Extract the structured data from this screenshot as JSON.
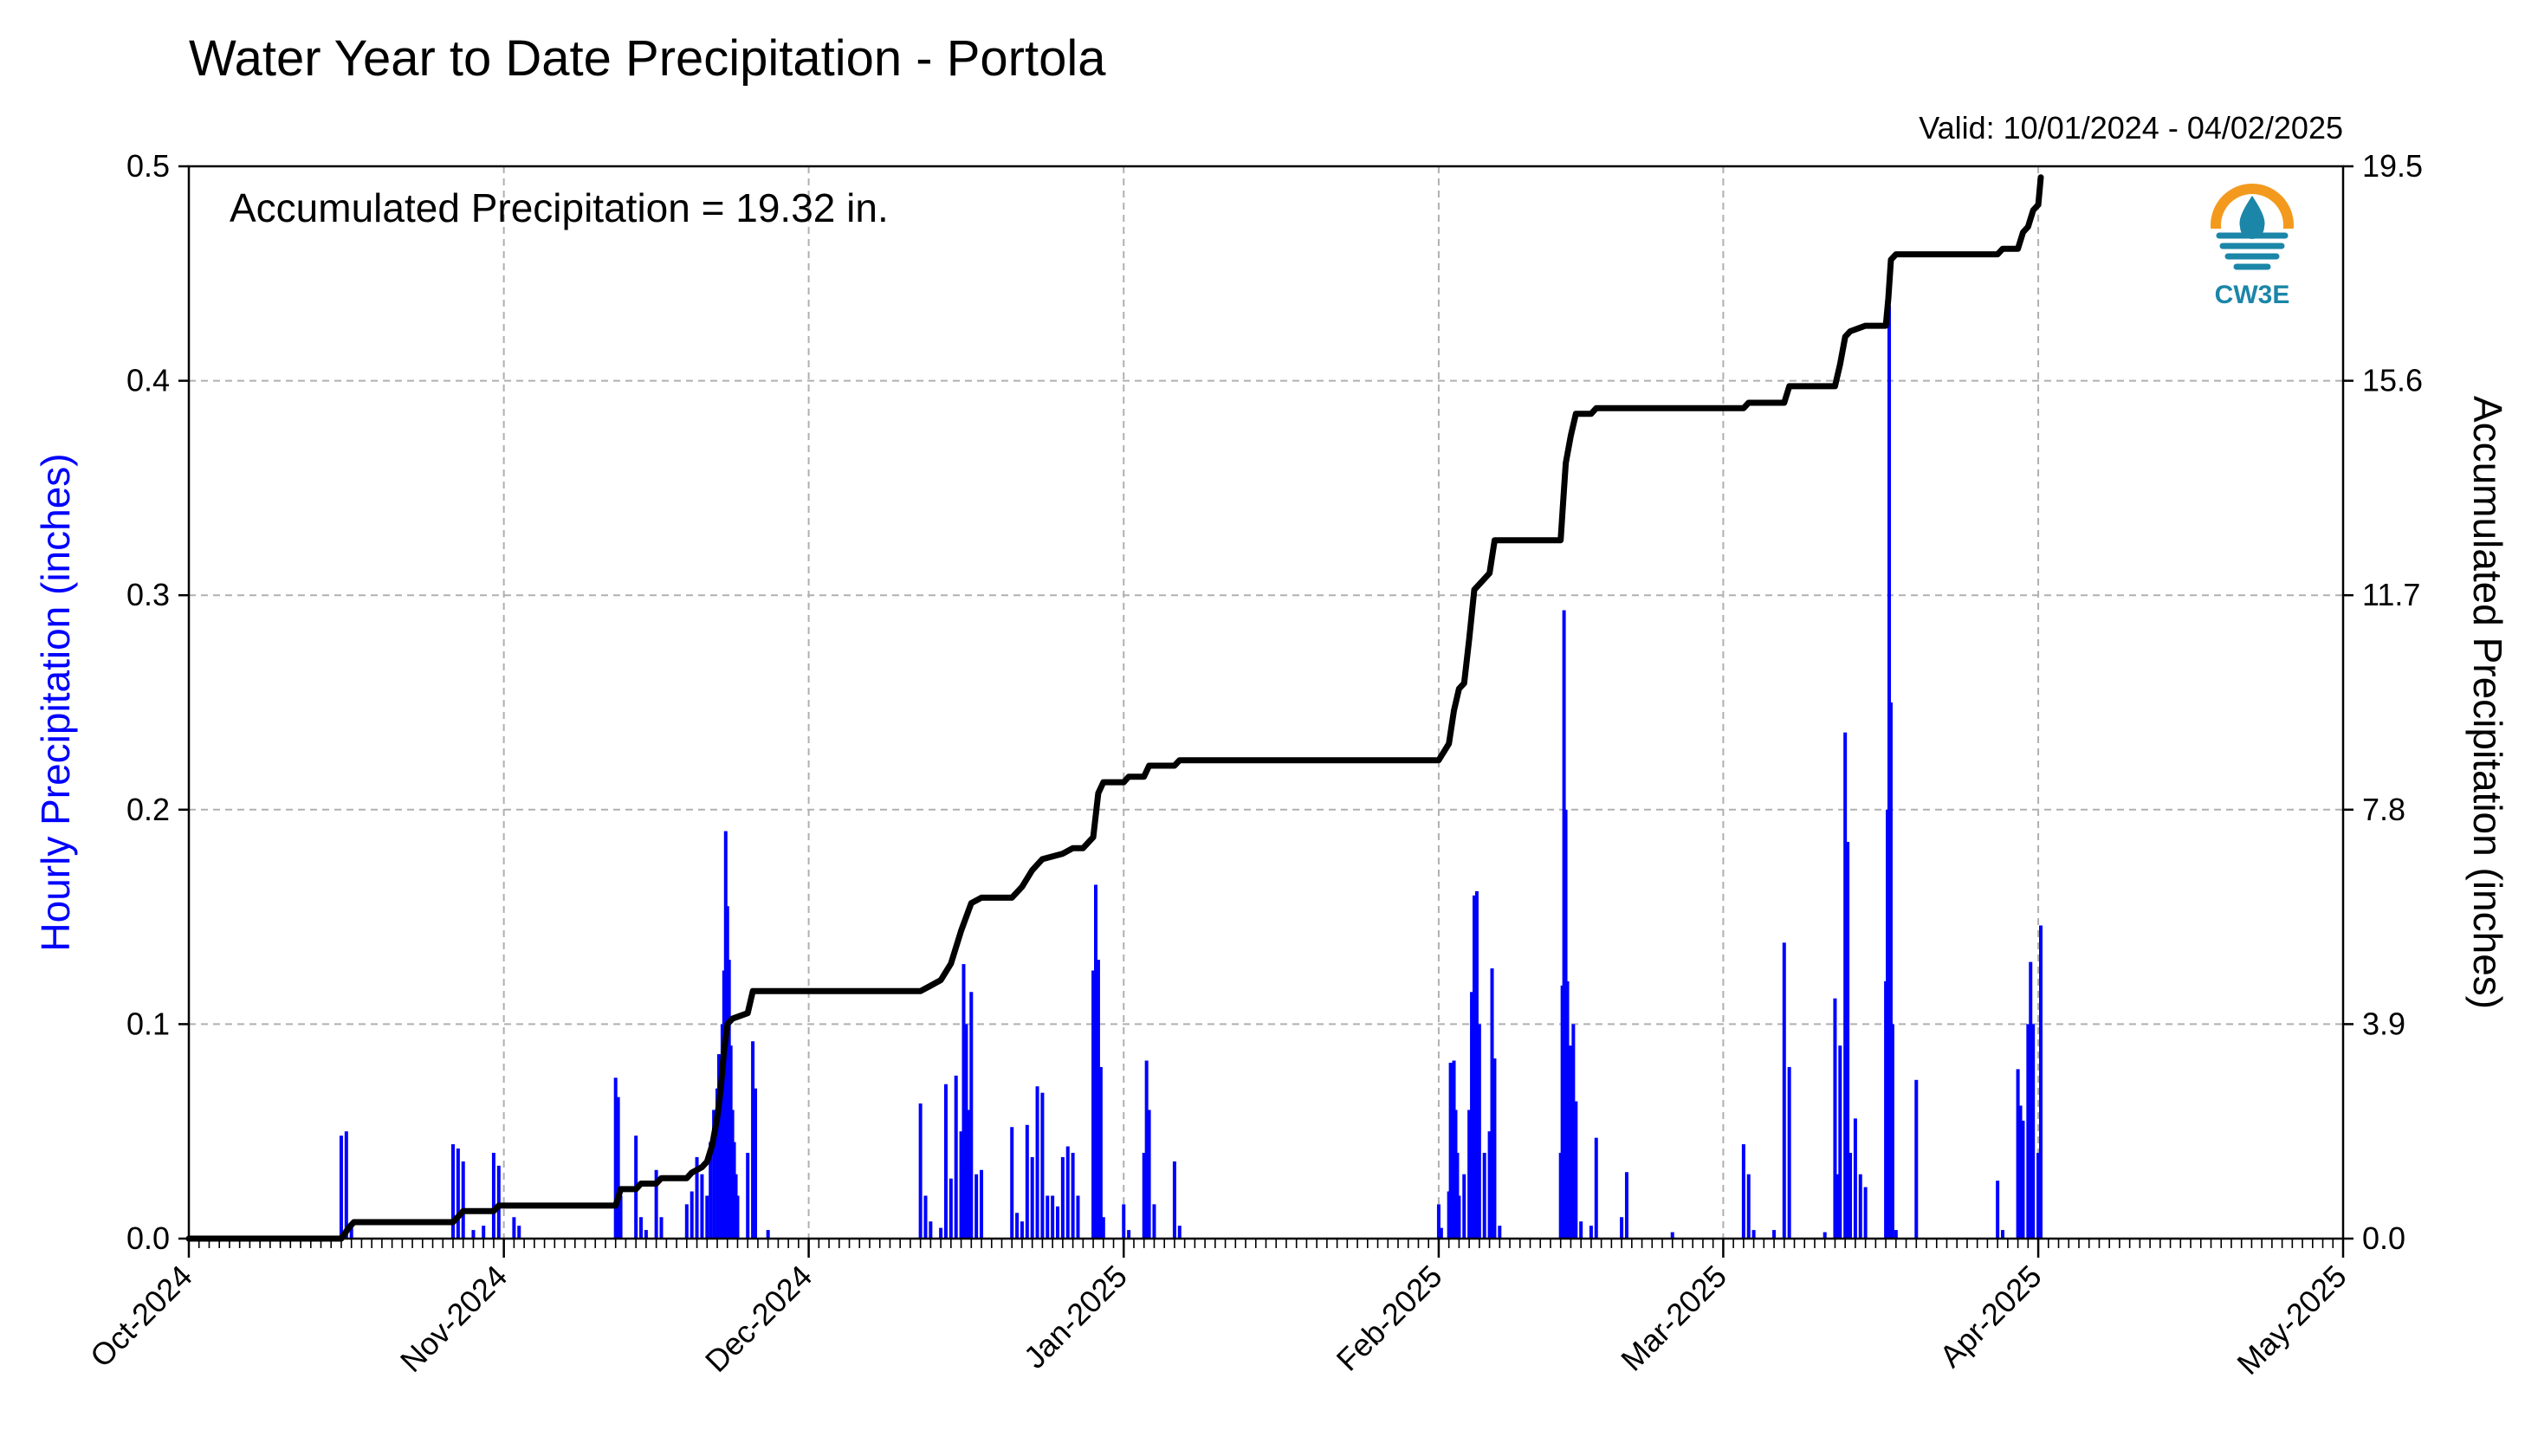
{
  "title": "Water Year to Date Precipitation - Portola",
  "valid_text": "Valid: 10/01/2024 - 04/02/2025",
  "annotation": "Accumulated Precipitation = 19.32 in.",
  "logo_text": "CW3E",
  "colors": {
    "hourly": "#0000ff",
    "accumulated": "#000000",
    "logo_orange": "#f39a1e",
    "logo_blue": "#1b86a8"
  },
  "chart_data": {
    "type": "bar",
    "x_axis": {
      "start": "2024-10-01",
      "end": "2025-05-01",
      "tick_labels": [
        "Oct-2024",
        "Nov-2024",
        "Dec-2024",
        "Jan-2025",
        "Feb-2025",
        "Mar-2025",
        "Apr-2025",
        "May-2025"
      ],
      "tick_dates": [
        "2024-10-01",
        "2024-11-01",
        "2024-12-01",
        "2025-01-01",
        "2025-02-01",
        "2025-03-01",
        "2025-04-01",
        "2025-05-01"
      ],
      "minor_ticks": "daily"
    },
    "y_left": {
      "label": "Hourly Precipitation (inches)",
      "ylim": [
        0,
        0.5
      ],
      "ticks": [
        "0.0",
        "0.1",
        "0.2",
        "0.3",
        "0.4",
        "0.5"
      ]
    },
    "y_right": {
      "label": "Accumulated Precipitation (inches)",
      "ylim": [
        0,
        19.5
      ],
      "ticks": [
        "0.0",
        "3.9",
        "7.8",
        "11.7",
        "15.6",
        "19.5"
      ]
    },
    "grid": true,
    "series": [
      {
        "type": "bar",
        "axis": "left",
        "color": "#0000ff",
        "data": [
          [
            "2024-10-16",
            0.048
          ],
          [
            "2024-10-16T12",
            0.05
          ],
          [
            "2024-10-17",
            0.006
          ],
          [
            "2024-10-27",
            0.044
          ],
          [
            "2024-10-27T12",
            0.042
          ],
          [
            "2024-10-28",
            0.036
          ],
          [
            "2024-10-29",
            0.004
          ],
          [
            "2024-10-30",
            0.006
          ],
          [
            "2024-10-31",
            0.04
          ],
          [
            "2024-10-31T12",
            0.034
          ],
          [
            "2024-11-02",
            0.01
          ],
          [
            "2024-11-02T12",
            0.006
          ],
          [
            "2024-11-12",
            0.075
          ],
          [
            "2024-11-12T06",
            0.066
          ],
          [
            "2024-11-12T12",
            0.02
          ],
          [
            "2024-11-14",
            0.048
          ],
          [
            "2024-11-14T12",
            0.01
          ],
          [
            "2024-11-15",
            0.004
          ],
          [
            "2024-11-16",
            0.032
          ],
          [
            "2024-11-16T12",
            0.01
          ],
          [
            "2024-11-19",
            0.016
          ],
          [
            "2024-11-19T12",
            0.022
          ],
          [
            "2024-11-20",
            0.038
          ],
          [
            "2024-11-20T12",
            0.03
          ],
          [
            "2024-11-21",
            0.02
          ],
          [
            "2024-11-21T08",
            0.045
          ],
          [
            "2024-11-21T16",
            0.06
          ],
          [
            "2024-11-22",
            0.07
          ],
          [
            "2024-11-22T04",
            0.086
          ],
          [
            "2024-11-22T08",
            0.068
          ],
          [
            "2024-11-22T12",
            0.1
          ],
          [
            "2024-11-22T16",
            0.125
          ],
          [
            "2024-11-22T20",
            0.19
          ],
          [
            "2024-11-23",
            0.155
          ],
          [
            "2024-11-23T04",
            0.13
          ],
          [
            "2024-11-23T08",
            0.09
          ],
          [
            "2024-11-23T12",
            0.06
          ],
          [
            "2024-11-23T16",
            0.045
          ],
          [
            "2024-11-23T20",
            0.03
          ],
          [
            "2024-11-24",
            0.02
          ],
          [
            "2024-11-25",
            0.04
          ],
          [
            "2024-11-25T12",
            0.092
          ],
          [
            "2024-11-25T18",
            0.07
          ],
          [
            "2024-11-27",
            0.004
          ],
          [
            "2024-12-12",
            0.063
          ],
          [
            "2024-12-12T12",
            0.02
          ],
          [
            "2024-12-13",
            0.008
          ],
          [
            "2024-12-14",
            0.005
          ],
          [
            "2024-12-14T12",
            0.072
          ],
          [
            "2024-12-15",
            0.028
          ],
          [
            "2024-12-15T12",
            0.076
          ],
          [
            "2024-12-16",
            0.05
          ],
          [
            "2024-12-16T06",
            0.128
          ],
          [
            "2024-12-16T12",
            0.1
          ],
          [
            "2024-12-16T18",
            0.06
          ],
          [
            "2024-12-17",
            0.115
          ],
          [
            "2024-12-17T12",
            0.03
          ],
          [
            "2024-12-18",
            0.032
          ],
          [
            "2024-12-21",
            0.052
          ],
          [
            "2024-12-21T12",
            0.012
          ],
          [
            "2024-12-22",
            0.008
          ],
          [
            "2024-12-22T12",
            0.053
          ],
          [
            "2024-12-23",
            0.038
          ],
          [
            "2024-12-23T12",
            0.071
          ],
          [
            "2024-12-24",
            0.068
          ],
          [
            "2024-12-24T12",
            0.02
          ],
          [
            "2024-12-25",
            0.02
          ],
          [
            "2024-12-25T12",
            0.015
          ],
          [
            "2024-12-26",
            0.038
          ],
          [
            "2024-12-26T12",
            0.043
          ],
          [
            "2024-12-27",
            0.04
          ],
          [
            "2024-12-27T12",
            0.02
          ],
          [
            "2024-12-29",
            0.125
          ],
          [
            "2024-12-29T06",
            0.165
          ],
          [
            "2024-12-29T12",
            0.13
          ],
          [
            "2024-12-29T18",
            0.08
          ],
          [
            "2024-12-30",
            0.01
          ],
          [
            "2025-01-01",
            0.016
          ],
          [
            "2025-01-01T12",
            0.004
          ],
          [
            "2025-01-03",
            0.04
          ],
          [
            "2025-01-03T06",
            0.083
          ],
          [
            "2025-01-03T12",
            0.06
          ],
          [
            "2025-01-04",
            0.016
          ],
          [
            "2025-01-06",
            0.036
          ],
          [
            "2025-01-06T12",
            0.006
          ],
          [
            "2025-02-01",
            0.016
          ],
          [
            "2025-02-01T06",
            0.005
          ],
          [
            "2025-02-02",
            0.022
          ],
          [
            "2025-02-02T04",
            0.082
          ],
          [
            "2025-02-02T08",
            0.064
          ],
          [
            "2025-02-02T12",
            0.083
          ],
          [
            "2025-02-02T16",
            0.06
          ],
          [
            "2025-02-02T20",
            0.04
          ],
          [
            "2025-02-03",
            0.02
          ],
          [
            "2025-02-03T12",
            0.03
          ],
          [
            "2025-02-04",
            0.06
          ],
          [
            "2025-02-04T06",
            0.115
          ],
          [
            "2025-02-04T12",
            0.16
          ],
          [
            "2025-02-04T18",
            0.162
          ],
          [
            "2025-02-05",
            0.1
          ],
          [
            "2025-02-05T12",
            0.04
          ],
          [
            "2025-02-06",
            0.05
          ],
          [
            "2025-02-06T06",
            0.126
          ],
          [
            "2025-02-06T12",
            0.084
          ],
          [
            "2025-02-07",
            0.006
          ],
          [
            "2025-02-13",
            0.04
          ],
          [
            "2025-02-13T04",
            0.118
          ],
          [
            "2025-02-13T08",
            0.293
          ],
          [
            "2025-02-13T12",
            0.2
          ],
          [
            "2025-02-13T16",
            0.12
          ],
          [
            "2025-02-14",
            0.09
          ],
          [
            "2025-02-14T06",
            0.1
          ],
          [
            "2025-02-14T12",
            0.064
          ],
          [
            "2025-02-15",
            0.008
          ],
          [
            "2025-02-16",
            0.006
          ],
          [
            "2025-02-16T12",
            0.047
          ],
          [
            "2025-02-19",
            0.01
          ],
          [
            "2025-02-19T12",
            0.031
          ],
          [
            "2025-02-24",
            0.003
          ],
          [
            "2025-03-03",
            0.044
          ],
          [
            "2025-03-03T12",
            0.03
          ],
          [
            "2025-03-04",
            0.004
          ],
          [
            "2025-03-06",
            0.004
          ],
          [
            "2025-03-07",
            0.138
          ],
          [
            "2025-03-07T12",
            0.08
          ],
          [
            "2025-03-11",
            0.003
          ],
          [
            "2025-03-12",
            0.112
          ],
          [
            "2025-03-12T06",
            0.03
          ],
          [
            "2025-03-12T12",
            0.09
          ],
          [
            "2025-03-13",
            0.236
          ],
          [
            "2025-03-13T06",
            0.185
          ],
          [
            "2025-03-13T12",
            0.04
          ],
          [
            "2025-03-14",
            0.056
          ],
          [
            "2025-03-14T12",
            0.03
          ],
          [
            "2025-03-15",
            0.024
          ],
          [
            "2025-03-17",
            0.12
          ],
          [
            "2025-03-17T04",
            0.2
          ],
          [
            "2025-03-17T08",
            0.435
          ],
          [
            "2025-03-17T12",
            0.25
          ],
          [
            "2025-03-17T16",
            0.1
          ],
          [
            "2025-03-18",
            0.004
          ],
          [
            "2025-03-20",
            0.074
          ],
          [
            "2025-03-28",
            0.027
          ],
          [
            "2025-03-28T12",
            0.004
          ],
          [
            "2025-03-30",
            0.079
          ],
          [
            "2025-03-30T06",
            0.062
          ],
          [
            "2025-03-30T12",
            0.055
          ],
          [
            "2025-03-31",
            0.1
          ],
          [
            "2025-03-31T06",
            0.129
          ],
          [
            "2025-03-31T12",
            0.1
          ],
          [
            "2025-04-01",
            0.04
          ],
          [
            "2025-04-01T06",
            0.146
          ]
        ]
      },
      {
        "type": "line",
        "axis": "right",
        "color": "#000000",
        "data": [
          [
            "2024-10-01",
            0.0
          ],
          [
            "2024-10-16",
            0.0
          ],
          [
            "2024-10-16T18",
            0.2
          ],
          [
            "2024-10-17T06",
            0.3
          ],
          [
            "2024-10-27",
            0.3
          ],
          [
            "2024-10-28",
            0.5
          ],
          [
            "2024-10-31",
            0.5
          ],
          [
            "2024-10-31T12",
            0.6
          ],
          [
            "2024-11-12",
            0.6
          ],
          [
            "2024-11-12T12",
            0.9
          ],
          [
            "2024-11-14",
            0.9
          ],
          [
            "2024-11-14T12",
            1.0
          ],
          [
            "2024-11-16",
            1.0
          ],
          [
            "2024-11-16T12",
            1.1
          ],
          [
            "2024-11-19",
            1.1
          ],
          [
            "2024-11-19T12",
            1.2
          ],
          [
            "2024-11-20T12",
            1.3
          ],
          [
            "2024-11-21",
            1.4
          ],
          [
            "2024-11-21T12",
            1.7
          ],
          [
            "2024-11-22",
            2.2
          ],
          [
            "2024-11-22T08",
            2.7
          ],
          [
            "2024-11-22T16",
            3.4
          ],
          [
            "2024-11-23",
            3.9
          ],
          [
            "2024-11-23T12",
            4.0
          ],
          [
            "2024-11-25",
            4.1
          ],
          [
            "2024-11-25T12",
            4.5
          ],
          [
            "2024-12-12",
            4.5
          ],
          [
            "2024-12-13",
            4.6
          ],
          [
            "2024-12-14",
            4.7
          ],
          [
            "2024-12-15",
            5.0
          ],
          [
            "2024-12-16",
            5.6
          ],
          [
            "2024-12-17",
            6.1
          ],
          [
            "2024-12-18",
            6.2
          ],
          [
            "2024-12-21",
            6.2
          ],
          [
            "2024-12-22",
            6.4
          ],
          [
            "2024-12-23",
            6.7
          ],
          [
            "2024-12-24",
            6.9
          ],
          [
            "2024-12-26",
            7.0
          ],
          [
            "2024-12-27",
            7.1
          ],
          [
            "2024-12-28",
            7.1
          ],
          [
            "2024-12-29",
            7.3
          ],
          [
            "2024-12-29T12",
            8.1
          ],
          [
            "2024-12-30",
            8.3
          ],
          [
            "2025-01-01",
            8.3
          ],
          [
            "2025-01-01T12",
            8.4
          ],
          [
            "2025-01-03",
            8.4
          ],
          [
            "2025-01-03T12",
            8.6
          ],
          [
            "2025-01-06",
            8.6
          ],
          [
            "2025-01-06T12",
            8.7
          ],
          [
            "2025-02-01",
            8.7
          ],
          [
            "2025-02-02",
            9.0
          ],
          [
            "2025-02-02T12",
            9.6
          ],
          [
            "2025-02-03",
            10.0
          ],
          [
            "2025-02-03T12",
            10.1
          ],
          [
            "2025-02-04",
            10.9
          ],
          [
            "2025-02-04T12",
            11.8
          ],
          [
            "2025-02-05",
            11.9
          ],
          [
            "2025-02-06",
            12.1
          ],
          [
            "2025-02-06T12",
            12.7
          ],
          [
            "2025-02-07",
            12.7
          ],
          [
            "2025-02-13",
            12.7
          ],
          [
            "2025-02-13T06",
            13.4
          ],
          [
            "2025-02-13T12",
            14.1
          ],
          [
            "2025-02-14",
            14.6
          ],
          [
            "2025-02-14T12",
            15.0
          ],
          [
            "2025-02-16",
            15.0
          ],
          [
            "2025-02-16T12",
            15.1
          ],
          [
            "2025-03-03",
            15.1
          ],
          [
            "2025-03-03T12",
            15.2
          ],
          [
            "2025-03-07",
            15.2
          ],
          [
            "2025-03-07T12",
            15.5
          ],
          [
            "2025-03-12",
            15.5
          ],
          [
            "2025-03-12T12",
            15.9
          ],
          [
            "2025-03-13",
            16.4
          ],
          [
            "2025-03-13T12",
            16.5
          ],
          [
            "2025-03-15",
            16.6
          ],
          [
            "2025-03-17",
            16.6
          ],
          [
            "2025-03-17T06",
            17.1
          ],
          [
            "2025-03-17T12",
            17.8
          ],
          [
            "2025-03-18",
            17.9
          ],
          [
            "2025-03-28",
            17.9
          ],
          [
            "2025-03-28T12",
            18.0
          ],
          [
            "2025-03-30",
            18.0
          ],
          [
            "2025-03-30T12",
            18.3
          ],
          [
            "2025-03-31",
            18.4
          ],
          [
            "2025-03-31T12",
            18.7
          ],
          [
            "2025-04-01",
            18.8
          ],
          [
            "2025-04-01T06",
            19.3
          ]
        ]
      }
    ]
  }
}
